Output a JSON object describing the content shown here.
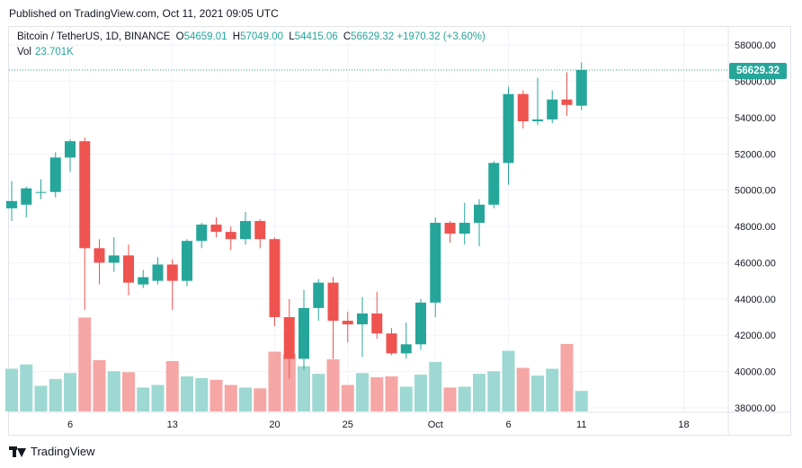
{
  "header": {
    "published": "Published on TradingView.com, Oct 11, 2021 09:05 UTC"
  },
  "legend": {
    "symbol": "Bitcoin / TetherUS, 1D, BINANCE",
    "o_label": "O",
    "o_value": "54659.01",
    "h_label": "H",
    "h_value": "57049.00",
    "l_label": "L",
    "l_value": "54415.06",
    "c_label": "C",
    "c_value": "56629.32",
    "change": "+1970.32 (+3.60%)",
    "vol_label": "Vol",
    "vol_value": "23.701K"
  },
  "last_price": "56629.32",
  "footer": {
    "brand": "TradingView"
  },
  "colors": {
    "up": "#26a69a",
    "down": "#ef5350",
    "up_vol": "#9ed8d2",
    "down_vol": "#f5a6a5",
    "grid": "#f0f3fa",
    "text": "#131722"
  },
  "chart_data": {
    "type": "candlestick",
    "title": "Bitcoin / TetherUS, 1D, BINANCE",
    "y_axis": {
      "ylim": [
        37800,
        59000
      ],
      "ticks": [
        "38000.00",
        "40000.00",
        "42000.00",
        "44000.00",
        "46000.00",
        "48000.00",
        "50000.00",
        "52000.00",
        "54000.00",
        "56000.00",
        "58000.00"
      ]
    },
    "x_axis": {
      "tick_labels": [
        "6",
        "13",
        "20",
        "25",
        "Oct",
        "6",
        "11",
        "18"
      ],
      "tick_indices": [
        4,
        11,
        18,
        23,
        29,
        34,
        39,
        46
      ]
    },
    "candles": [
      {
        "o": 49000,
        "h": 50500,
        "l": 48300,
        "c": 49400
      },
      {
        "o": 49200,
        "h": 50200,
        "l": 48500,
        "c": 50100
      },
      {
        "o": 49900,
        "h": 50600,
        "l": 49500,
        "c": 49900
      },
      {
        "o": 49900,
        "h": 52100,
        "l": 49600,
        "c": 51800
      },
      {
        "o": 51800,
        "h": 52800,
        "l": 51000,
        "c": 52700
      },
      {
        "o": 52700,
        "h": 52900,
        "l": 43400,
        "c": 46800
      },
      {
        "o": 46800,
        "h": 47300,
        "l": 44800,
        "c": 46000
      },
      {
        "o": 46000,
        "h": 47400,
        "l": 45500,
        "c": 46400
      },
      {
        "o": 46400,
        "h": 47000,
        "l": 44200,
        "c": 44900
      },
      {
        "o": 44800,
        "h": 45600,
        "l": 44600,
        "c": 45200
      },
      {
        "o": 45000,
        "h": 46300,
        "l": 44800,
        "c": 45900
      },
      {
        "o": 45900,
        "h": 46200,
        "l": 43400,
        "c": 45000
      },
      {
        "o": 45000,
        "h": 47300,
        "l": 44700,
        "c": 47200
      },
      {
        "o": 47200,
        "h": 48200,
        "l": 46800,
        "c": 48100
      },
      {
        "o": 48100,
        "h": 48500,
        "l": 47400,
        "c": 47700
      },
      {
        "o": 47700,
        "h": 48000,
        "l": 46700,
        "c": 47300
      },
      {
        "o": 47300,
        "h": 48800,
        "l": 47000,
        "c": 48300
      },
      {
        "o": 48300,
        "h": 48400,
        "l": 46800,
        "c": 47300
      },
      {
        "o": 47300,
        "h": 47400,
        "l": 42500,
        "c": 43000
      },
      {
        "o": 43000,
        "h": 44000,
        "l": 39600,
        "c": 40700
      },
      {
        "o": 40700,
        "h": 44500,
        "l": 40100,
        "c": 43500
      },
      {
        "o": 43500,
        "h": 45100,
        "l": 42800,
        "c": 44900
      },
      {
        "o": 44900,
        "h": 45200,
        "l": 40700,
        "c": 42800
      },
      {
        "o": 42800,
        "h": 43300,
        "l": 41600,
        "c": 42600
      },
      {
        "o": 42600,
        "h": 44100,
        "l": 40800,
        "c": 43200
      },
      {
        "o": 43200,
        "h": 44400,
        "l": 41800,
        "c": 42100
      },
      {
        "o": 42100,
        "h": 42400,
        "l": 40900,
        "c": 41000
      },
      {
        "o": 41000,
        "h": 42700,
        "l": 40700,
        "c": 41500
      },
      {
        "o": 41500,
        "h": 44000,
        "l": 41200,
        "c": 43800
      },
      {
        "o": 43800,
        "h": 48500,
        "l": 43000,
        "c": 48200
      },
      {
        "o": 48200,
        "h": 48300,
        "l": 47100,
        "c": 47600
      },
      {
        "o": 47600,
        "h": 49300,
        "l": 47000,
        "c": 48200
      },
      {
        "o": 48200,
        "h": 49500,
        "l": 46900,
        "c": 49200
      },
      {
        "o": 49200,
        "h": 51600,
        "l": 49000,
        "c": 51500
      },
      {
        "o": 51500,
        "h": 55700,
        "l": 50300,
        "c": 55300
      },
      {
        "o": 55300,
        "h": 55500,
        "l": 53400,
        "c": 53800
      },
      {
        "o": 53800,
        "h": 56200,
        "l": 53600,
        "c": 53900
      },
      {
        "o": 53900,
        "h": 55500,
        "l": 53700,
        "c": 55000
      },
      {
        "o": 55000,
        "h": 56500,
        "l": 54100,
        "c": 54700
      },
      {
        "o": 54659.01,
        "h": 57049,
        "l": 54415.06,
        "c": 56629.32
      }
    ],
    "volume": [
      50,
      55,
      30,
      38,
      45,
      110,
      60,
      47,
      46,
      28,
      31,
      59,
      41,
      39,
      37,
      31,
      28,
      27,
      70,
      67,
      53,
      44,
      61,
      31,
      45,
      40,
      41,
      29,
      43,
      58,
      28,
      29,
      44,
      47,
      71,
      51,
      42,
      50,
      79,
      24
    ]
  }
}
